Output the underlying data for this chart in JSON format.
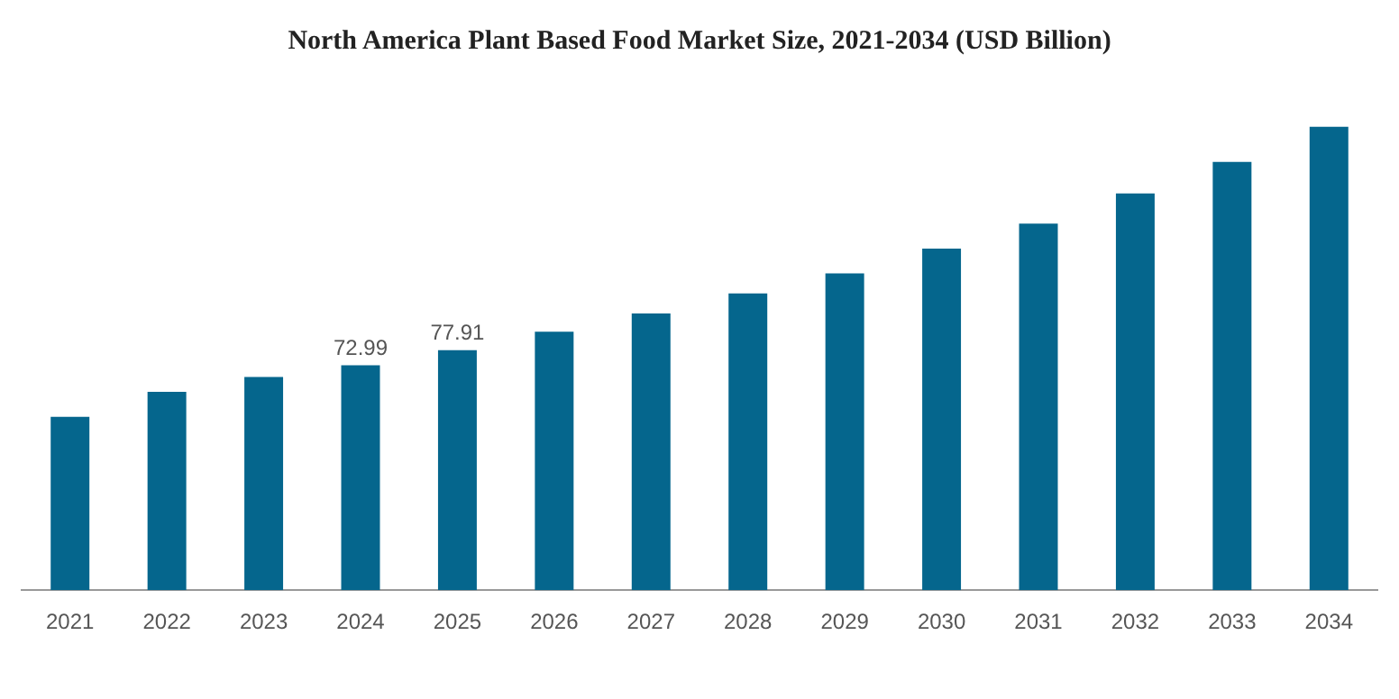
{
  "chart_data": {
    "type": "bar",
    "title": "North America Plant Based Food Market Size, 2021-2034 (USD Billion)",
    "categories": [
      "2021",
      "2022",
      "2023",
      "2024",
      "2025",
      "2026",
      "2027",
      "2028",
      "2029",
      "2030",
      "2031",
      "2032",
      "2033",
      "2034"
    ],
    "values": [
      56.3,
      64.4,
      69.2,
      72.99,
      77.91,
      83.9,
      89.8,
      96.3,
      102.8,
      110.9,
      119.0,
      128.8,
      139.0,
      150.4
    ],
    "value_labels": [
      null,
      null,
      null,
      "72.99",
      "77.91",
      null,
      null,
      null,
      null,
      null,
      null,
      null,
      null,
      null
    ],
    "color": "#05668d"
  }
}
